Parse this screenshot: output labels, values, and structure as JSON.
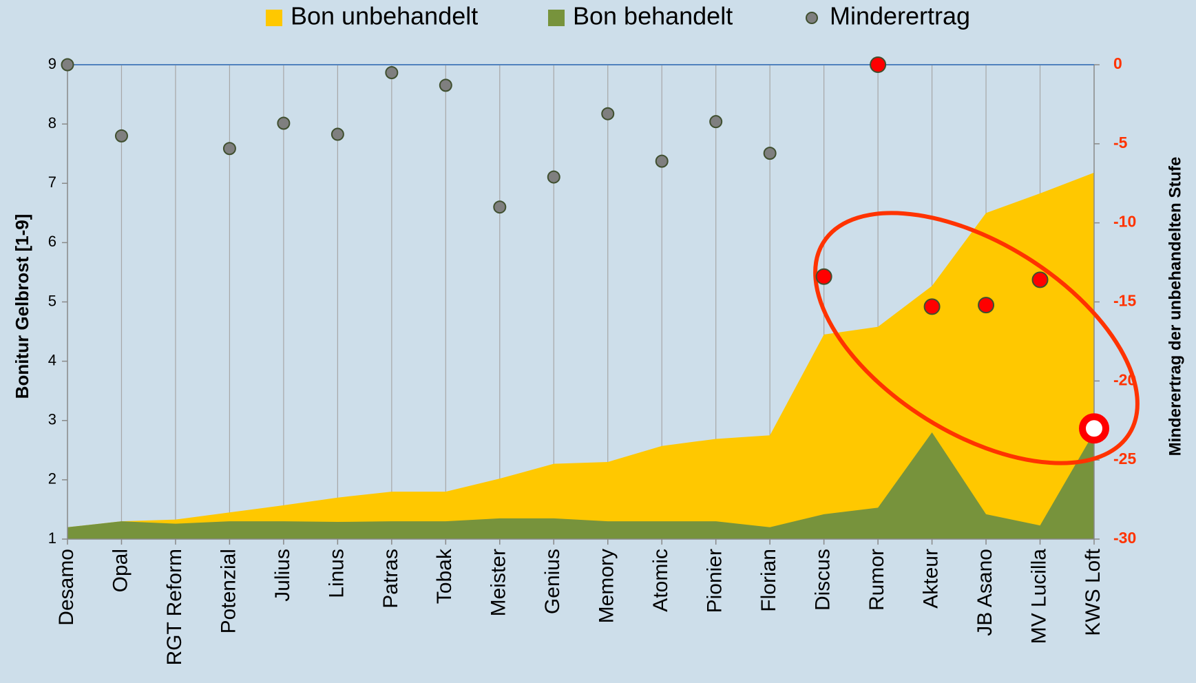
{
  "chart_data": {
    "type": "area",
    "categories": [
      "Desamo",
      "Opal",
      "RGT Reform",
      "Potenzial",
      "Julius",
      "Linus",
      "Patras",
      "Tobak",
      "Meister",
      "Genius",
      "Memory",
      "Atomic",
      "Pionier",
      "Florian",
      "Discus",
      "Rumor",
      "Akteur",
      "JB Asano",
      "MV Lucilla",
      "KWS Loft"
    ],
    "series": [
      {
        "name": "Bon unbehandelt",
        "color": "#ffc800",
        "values": [
          1.2,
          1.3,
          1.33,
          1.45,
          1.57,
          1.7,
          1.8,
          1.8,
          2.02,
          2.27,
          2.3,
          2.57,
          2.69,
          2.75,
          4.45,
          4.58,
          5.27,
          6.5,
          6.83,
          7.18
        ]
      },
      {
        "name": "Bon behandelt",
        "color": "#77933c",
        "values": [
          1.2,
          1.3,
          1.26,
          1.3,
          1.3,
          1.29,
          1.3,
          1.3,
          1.35,
          1.35,
          1.3,
          1.3,
          1.3,
          1.2,
          1.42,
          1.53,
          2.8,
          1.42,
          1.23,
          2.8
        ]
      },
      {
        "name": "Minderertrag",
        "type": "scatter",
        "axis": "y2",
        "color": "#7f7f7f",
        "point_colors": [
          "#7f7f7f",
          "#7f7f7f",
          "#7f7f7f",
          "#7f7f7f",
          "#7f7f7f",
          "#7f7f7f",
          "#7f7f7f",
          "#7f7f7f",
          "#7f7f7f",
          "#7f7f7f",
          "#7f7f7f",
          "#7f7f7f",
          "#7f7f7f",
          "#7f7f7f",
          "#ff0000",
          "#ff0000",
          "#ff0000",
          "#ff0000",
          "#ff0000",
          "#ffffff"
        ],
        "values": [
          0,
          -4.5,
          null,
          -5.3,
          -3.7,
          -4.4,
          -0.5,
          -1.3,
          -9.0,
          -7.1,
          -3.1,
          -6.1,
          -3.6,
          -5.6,
          -13.4,
          0,
          -15.3,
          -15.2,
          -13.6,
          -23.0
        ]
      }
    ],
    "ylabel": "Bonitur Gelbrost [1-9]",
    "y2label": "Minderertrag der unbehandelten Stufe",
    "ylim": [
      1,
      9
    ],
    "yticks": [
      1,
      2,
      3,
      4,
      5,
      6,
      7,
      8,
      9
    ],
    "y2lim": [
      -30,
      0
    ],
    "y2ticks": [
      -30,
      -25,
      -20,
      -15,
      -10,
      -5,
      0
    ],
    "y2color": "#ff3300",
    "grid": "x",
    "legend": "top"
  }
}
